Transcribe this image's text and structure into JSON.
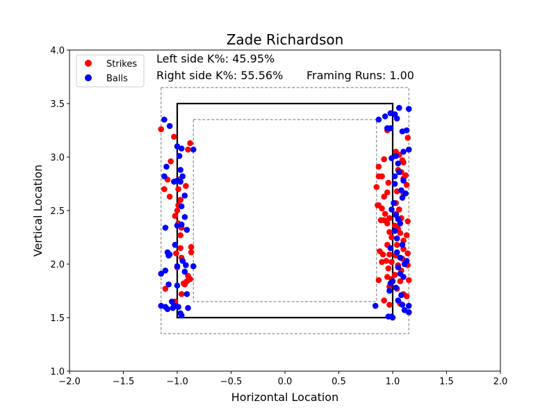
{
  "chart_data": {
    "type": "scatter",
    "title": "Zade Richardson",
    "xlabel": "Horizontal Location",
    "ylabel": "Vertical Location",
    "xlim": [
      -2.0,
      2.0
    ],
    "ylim": [
      1.0,
      4.0
    ],
    "x_ticks": [
      "−2.0",
      "−1.5",
      "−1.0",
      "−0.5",
      "0.0",
      "0.5",
      "1.0",
      "1.5",
      "2.0"
    ],
    "y_ticks": [
      "1.0",
      "1.5",
      "2.0",
      "2.5",
      "3.0",
      "3.5",
      "4.0"
    ],
    "x_tick_values": [
      -2.0,
      -1.5,
      -1.0,
      -0.5,
      0.0,
      0.5,
      1.0,
      1.5,
      2.0
    ],
    "y_tick_values": [
      1.0,
      1.5,
      2.0,
      2.5,
      3.0,
      3.5,
      4.0
    ],
    "grid": false,
    "legend_position": "top-left",
    "annotations": {
      "left_k": "Left side K%: 45.95%",
      "right_k": "Right side K%: 55.56%",
      "framing": "Framing Runs: 1.00"
    },
    "zones": {
      "strike_zone": {
        "x": [
          -1.0,
          1.0
        ],
        "y": [
          1.5,
          3.5
        ],
        "color": "#000000",
        "style": "solid"
      },
      "outer_zone": {
        "x": [
          -1.15,
          1.15
        ],
        "y": [
          1.35,
          3.65
        ],
        "color": "#808080",
        "style": "dashed"
      },
      "inner_zone": {
        "x": [
          -0.85,
          0.85
        ],
        "y": [
          1.65,
          3.35
        ],
        "color": "#808080",
        "style": "dashed"
      }
    },
    "series": [
      {
        "name": "Strikes",
        "color": "#ff0000",
        "points": [
          [
            -1.15,
            3.26
          ],
          [
            -1.03,
            3.19
          ],
          [
            -0.9,
            3.07
          ],
          [
            -0.88,
            3.13
          ],
          [
            -1.06,
            2.96
          ],
          [
            -1.09,
            2.79
          ],
          [
            -0.98,
            2.79
          ],
          [
            -1.12,
            2.7
          ],
          [
            -0.92,
            2.73
          ],
          [
            -0.99,
            2.7
          ],
          [
            -1.07,
            2.63
          ],
          [
            -0.97,
            2.6
          ],
          [
            -0.99,
            2.55
          ],
          [
            -1.0,
            2.5
          ],
          [
            -1.02,
            2.45
          ],
          [
            -0.99,
            2.38
          ],
          [
            -0.96,
            2.34
          ],
          [
            -0.97,
            2.27
          ],
          [
            -0.97,
            2.15
          ],
          [
            -1.01,
            2.1
          ],
          [
            -0.96,
            2.06
          ],
          [
            -0.87,
            2.16
          ],
          [
            -0.87,
            2.11
          ],
          [
            -1.0,
            1.97
          ],
          [
            -0.9,
            1.89
          ],
          [
            -0.88,
            1.86
          ],
          [
            -0.91,
            1.84
          ],
          [
            -0.94,
            1.82
          ],
          [
            -0.93,
            1.81
          ],
          [
            -1.11,
            1.77
          ],
          [
            -0.96,
            1.72
          ],
          [
            -1.02,
            1.65
          ],
          [
            0.95,
            3.25
          ],
          [
            0.92,
            2.98
          ],
          [
            0.87,
            2.91
          ],
          [
            0.87,
            2.82
          ],
          [
            0.9,
            2.82
          ],
          [
            0.96,
            2.76
          ],
          [
            0.85,
            2.72
          ],
          [
            0.95,
            2.67
          ],
          [
            0.92,
            2.63
          ],
          [
            0.87,
            2.55
          ],
          [
            0.9,
            2.52
          ],
          [
            0.86,
            2.55
          ],
          [
            0.93,
            2.47
          ],
          [
            0.89,
            2.41
          ],
          [
            0.92,
            2.41
          ],
          [
            0.97,
            2.43
          ],
          [
            0.95,
            2.38
          ],
          [
            0.97,
            2.3
          ],
          [
            0.99,
            2.25
          ],
          [
            0.95,
            2.18
          ],
          [
            0.88,
            2.12
          ],
          [
            0.91,
            2.09
          ],
          [
            0.97,
            2.09
          ],
          [
            0.9,
            2.02
          ],
          [
            0.94,
            2.03
          ],
          [
            0.99,
            2.02
          ],
          [
            0.96,
            1.96
          ],
          [
            0.87,
            1.85
          ],
          [
            0.95,
            1.88
          ],
          [
            0.99,
            1.86
          ],
          [
            0.97,
            1.79
          ],
          [
            0.92,
            1.66
          ],
          [
            0.97,
            1.62
          ],
          [
            1.03,
            3.05
          ],
          [
            1.06,
            3.02
          ],
          [
            1.09,
            2.97
          ],
          [
            1.1,
            2.95
          ],
          [
            1.05,
            2.88
          ],
          [
            1.08,
            2.86
          ],
          [
            1.12,
            2.83
          ],
          [
            1.1,
            2.8
          ],
          [
            1.13,
            2.74
          ],
          [
            1.04,
            2.68
          ],
          [
            1.1,
            2.66
          ],
          [
            1.14,
            3.18
          ],
          [
            1.03,
            2.57
          ],
          [
            1.06,
            2.51
          ],
          [
            1.03,
            2.47
          ],
          [
            1.08,
            2.43
          ],
          [
            1.14,
            2.4
          ],
          [
            1.02,
            2.36
          ],
          [
            1.05,
            2.33
          ],
          [
            1.07,
            2.29
          ],
          [
            1.13,
            2.27
          ],
          [
            1.1,
            2.22
          ],
          [
            1.04,
            2.18
          ],
          [
            1.1,
            2.14
          ],
          [
            1.14,
            2.1
          ],
          [
            1.03,
            2.08
          ],
          [
            1.09,
            2.05
          ],
          [
            1.05,
            1.99
          ],
          [
            1.14,
            1.99
          ],
          [
            1.08,
            1.94
          ],
          [
            1.02,
            1.9
          ],
          [
            1.07,
            1.84
          ],
          [
            1.15,
            1.85
          ],
          [
            1.04,
            1.77
          ],
          [
            1.1,
            1.72
          ],
          [
            1.13,
            1.7
          ],
          [
            1.07,
            1.63
          ],
          [
            1.15,
            1.55
          ]
        ]
      },
      {
        "name": "Balls",
        "color": "#0000ff",
        "points": [
          [
            -1.12,
            3.35
          ],
          [
            -1.07,
            3.29
          ],
          [
            -1.0,
            3.1
          ],
          [
            -0.96,
            3.08
          ],
          [
            -0.85,
            3.07
          ],
          [
            -0.98,
            3.01
          ],
          [
            -1.1,
            2.91
          ],
          [
            -0.97,
            2.88
          ],
          [
            -0.95,
            2.82
          ],
          [
            -1.12,
            2.82
          ],
          [
            -1.03,
            2.77
          ],
          [
            -1.0,
            2.78
          ],
          [
            -0.97,
            2.77
          ],
          [
            -0.93,
            2.64
          ],
          [
            -0.96,
            2.54
          ],
          [
            -0.93,
            2.44
          ],
          [
            -0.96,
            2.37
          ],
          [
            -1.0,
            2.36
          ],
          [
            -1.11,
            2.34
          ],
          [
            -0.91,
            2.32
          ],
          [
            -1.02,
            2.18
          ],
          [
            -1.09,
            2.11
          ],
          [
            -1.07,
            2.09
          ],
          [
            -1.08,
            2.08
          ],
          [
            -0.95,
            2.03
          ],
          [
            -1.0,
            1.98
          ],
          [
            -0.92,
            1.99
          ],
          [
            -0.85,
            1.98
          ],
          [
            -1.11,
            1.94
          ],
          [
            -1.15,
            1.91
          ],
          [
            -0.93,
            1.93
          ],
          [
            -1.08,
            1.81
          ],
          [
            -1.0,
            1.8
          ],
          [
            -0.91,
            1.72
          ],
          [
            -1.05,
            1.65
          ],
          [
            -1.15,
            1.61
          ],
          [
            -1.11,
            1.6
          ],
          [
            -1.09,
            1.58
          ],
          [
            -1.04,
            1.59
          ],
          [
            -1.03,
            1.61
          ],
          [
            -0.99,
            1.6
          ],
          [
            -0.9,
            1.59
          ],
          [
            -0.97,
            1.54
          ],
          [
            -0.96,
            1.52
          ],
          [
            0.87,
            3.35
          ],
          [
            0.93,
            3.38
          ],
          [
            0.98,
            3.41
          ],
          [
            1.02,
            3.4
          ],
          [
            0.98,
            3.27
          ],
          [
            0.95,
            3.27
          ],
          [
            1.06,
            3.46
          ],
          [
            1.15,
            3.45
          ],
          [
            1.04,
            3.36
          ],
          [
            1.09,
            3.24
          ],
          [
            1.13,
            3.25
          ],
          [
            1.15,
            3.07
          ],
          [
            1.1,
            3.05
          ],
          [
            1.03,
            3.01
          ],
          [
            0.99,
            2.99
          ],
          [
            1.05,
            2.94
          ],
          [
            1.06,
            2.86
          ],
          [
            1.02,
            2.82
          ],
          [
            1.1,
            2.78
          ],
          [
            1.02,
            2.75
          ],
          [
            1.08,
            2.69
          ],
          [
            1.12,
            2.66
          ],
          [
            1.09,
            2.62
          ],
          [
            1.01,
            2.57
          ],
          [
            0.99,
            2.51
          ],
          [
            1.03,
            2.46
          ],
          [
            1.05,
            2.42
          ],
          [
            1.07,
            2.38
          ],
          [
            1.02,
            2.31
          ],
          [
            1.04,
            2.24
          ],
          [
            1.09,
            2.18
          ],
          [
            0.98,
            2.15
          ],
          [
            1.04,
            2.11
          ],
          [
            1.07,
            2.06
          ],
          [
            1.13,
            2.03
          ],
          [
            1.11,
            2.0
          ],
          [
            1.05,
            1.97
          ],
          [
            1.07,
            1.91
          ],
          [
            1.1,
            1.88
          ],
          [
            1.0,
            1.84
          ],
          [
            0.98,
            1.82
          ],
          [
            1.03,
            1.78
          ],
          [
            0.97,
            1.75
          ],
          [
            1.08,
            1.71
          ],
          [
            1.05,
            1.66
          ],
          [
            1.09,
            1.62
          ],
          [
            1.15,
            1.61
          ],
          [
            0.84,
            1.61
          ],
          [
            1.11,
            1.57
          ],
          [
            1.15,
            1.55
          ],
          [
            0.96,
            1.51
          ],
          [
            0.99,
            1.51
          ],
          [
            1.0,
            1.5
          ]
        ]
      }
    ]
  }
}
